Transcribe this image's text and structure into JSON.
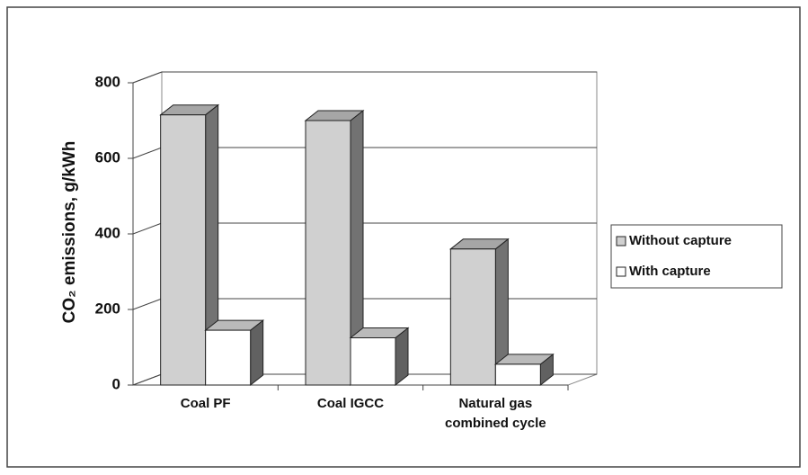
{
  "chart_data": {
    "type": "bar3d",
    "y_label": "CO₂ emissions, g/kWh",
    "categories": [
      "Coal PF",
      "Coal IGCC",
      "Natural gas combined cycle"
    ],
    "series": [
      {
        "name": "Without capture",
        "color": "#d0d0d0",
        "values": [
          715,
          700,
          360
        ]
      },
      {
        "name": "With capture",
        "color": "#ffffff",
        "values": [
          145,
          125,
          55
        ]
      }
    ],
    "ylim": [
      0,
      800
    ],
    "yticks": [
      0,
      200,
      400,
      600,
      800
    ],
    "grid": true,
    "legend": "right"
  }
}
